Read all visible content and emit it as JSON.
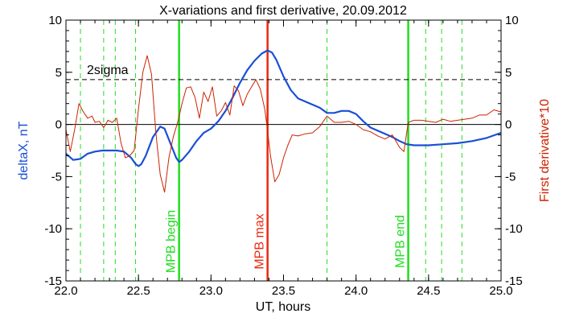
{
  "chart_data": {
    "type": "line",
    "title": "X-variations and first derivative, 20.09.2012",
    "xlabel": "UT, hours",
    "ylabel_left": "deltaX, nT",
    "ylabel_right": "First derivative*10",
    "xlim": [
      22.0,
      25.0
    ],
    "ylim": [
      -15,
      10
    ],
    "xticks": [
      22.0,
      22.5,
      23.0,
      23.5,
      24.0,
      24.5,
      25.0
    ],
    "xtick_labels": [
      "22.0",
      "22.5",
      "23.0",
      "23.5",
      "24.0",
      "24.5",
      "25.0"
    ],
    "yticks": [
      10,
      5,
      0,
      -5,
      -10,
      -15
    ],
    "ytick_labels": [
      "10",
      "5",
      "0",
      "-5",
      "-10",
      "-15"
    ],
    "grid": false,
    "zero_line": 0,
    "threshold": {
      "label": "2sigma",
      "value": 4.3,
      "color": "#000000"
    },
    "colors": {
      "deltax": "#1a4fd6",
      "derivative": "#cc2200",
      "mpb_boundary": "#22dd22",
      "mpb_max": "#e82a10",
      "dashed_markers": "#22dd22"
    },
    "vertical_markers": [
      {
        "label": "MPB begin",
        "x": 22.78,
        "color": "#22dd22"
      },
      {
        "label": "MPB max",
        "x": 23.39,
        "color": "#e82a10"
      },
      {
        "label": "MPB end",
        "x": 24.36,
        "color": "#22dd22"
      }
    ],
    "dashed_verticals": [
      22.1,
      22.26,
      22.34,
      22.48,
      23.8,
      24.48,
      24.59,
      24.73
    ],
    "series": [
      {
        "name": "deltaX, nT",
        "axis": "left",
        "color": "#1a4fd6",
        "x": [
          22.0,
          22.05,
          22.1,
          22.15,
          22.2,
          22.25,
          22.3,
          22.35,
          22.4,
          22.45,
          22.48,
          22.5,
          22.52,
          22.55,
          22.6,
          22.65,
          22.68,
          22.72,
          22.76,
          22.78,
          22.8,
          22.85,
          22.9,
          22.95,
          23.0,
          23.05,
          23.1,
          23.15,
          23.2,
          23.25,
          23.3,
          23.35,
          23.39,
          23.42,
          23.45,
          23.5,
          23.55,
          23.6,
          23.65,
          23.7,
          23.75,
          23.8,
          23.85,
          23.9,
          23.95,
          24.0,
          24.05,
          24.1,
          24.15,
          24.2,
          24.25,
          24.3,
          24.35,
          24.4,
          24.5,
          24.6,
          24.7,
          24.8,
          24.9,
          25.0
        ],
        "y": [
          -2.8,
          -3.4,
          -3.3,
          -2.8,
          -2.6,
          -2.5,
          -2.5,
          -2.5,
          -2.6,
          -3.2,
          -3.8,
          -4.0,
          -3.8,
          -3.0,
          -1.2,
          -0.2,
          -0.4,
          -1.8,
          -3.2,
          -3.6,
          -3.4,
          -2.6,
          -1.6,
          -0.8,
          -0.4,
          0.3,
          1.3,
          2.6,
          4.0,
          5.2,
          6.1,
          6.8,
          7.1,
          6.9,
          6.2,
          4.6,
          3.3,
          2.5,
          2.2,
          1.9,
          1.6,
          1.1,
          1.1,
          1.3,
          1.3,
          1.0,
          0.3,
          -0.3,
          -0.6,
          -0.9,
          -1.2,
          -1.6,
          -1.9,
          -2.0,
          -2.0,
          -1.9,
          -1.8,
          -1.6,
          -1.3,
          -0.8
        ]
      },
      {
        "name": "First derivative*10",
        "axis": "right",
        "color": "#cc2200",
        "x": [
          22.0,
          22.03,
          22.06,
          22.09,
          22.12,
          22.15,
          22.18,
          22.2,
          22.23,
          22.26,
          22.29,
          22.32,
          22.35,
          22.38,
          22.41,
          22.44,
          22.47,
          22.5,
          22.53,
          22.56,
          22.59,
          22.62,
          22.65,
          22.68,
          22.71,
          22.74,
          22.77,
          22.8,
          22.83,
          22.86,
          22.89,
          22.92,
          22.95,
          22.98,
          23.01,
          23.04,
          23.07,
          23.1,
          23.13,
          23.16,
          23.19,
          23.22,
          23.25,
          23.28,
          23.31,
          23.34,
          23.37,
          23.39,
          23.41,
          23.44,
          23.47,
          23.5,
          23.53,
          23.56,
          23.6,
          23.65,
          23.7,
          23.75,
          23.8,
          23.85,
          23.9,
          23.95,
          24.0,
          24.05,
          24.1,
          24.15,
          24.2,
          24.25,
          24.3,
          24.33,
          24.36,
          24.4,
          24.45,
          24.5,
          24.55,
          24.6,
          24.65,
          24.7,
          24.75,
          24.8,
          24.85,
          24.9,
          24.95,
          25.0
        ],
        "y": [
          -0.5,
          -2.6,
          -0.5,
          2.0,
          1.2,
          0.6,
          0.8,
          0.2,
          0.3,
          -0.3,
          0.4,
          0.2,
          0.6,
          -1.8,
          -3.2,
          -3.0,
          -2.5,
          1.5,
          5.0,
          6.6,
          4.8,
          -0.8,
          -4.8,
          -6.5,
          -3.2,
          -1.2,
          0.2,
          2.0,
          3.5,
          3.6,
          2.6,
          0.6,
          3.1,
          2.2,
          3.6,
          0.8,
          1.3,
          2.1,
          0.9,
          3.7,
          3.2,
          1.8,
          2.9,
          3.6,
          4.3,
          3.4,
          1.5,
          -0.6,
          -3.0,
          -5.5,
          -4.8,
          -3.2,
          -2.0,
          -1.0,
          -1.1,
          -0.9,
          -0.8,
          -0.2,
          0.8,
          0.2,
          0.2,
          0.3,
          0.0,
          -0.5,
          -0.7,
          -1.1,
          -1.4,
          -1.0,
          -2.2,
          -2.6,
          0.2,
          0.4,
          0.4,
          0.3,
          0.2,
          0.5,
          0.3,
          0.4,
          0.5,
          0.6,
          0.9,
          0.9,
          1.4,
          1.2
        ]
      }
    ]
  }
}
